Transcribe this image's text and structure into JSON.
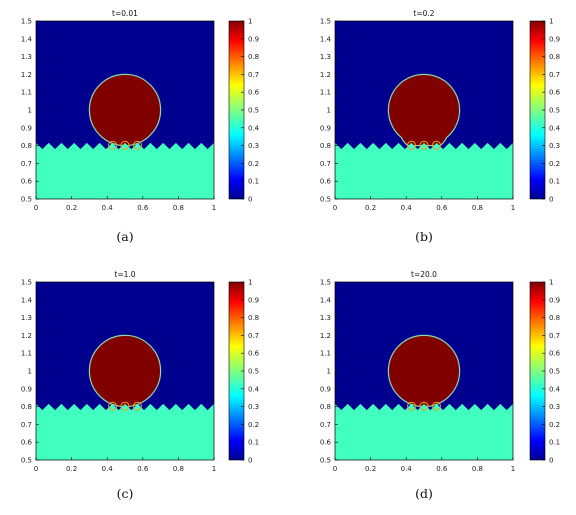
{
  "figure": {
    "panels": [
      {
        "title": "t=0.01",
        "caption": "(a)",
        "drop_state": "initial"
      },
      {
        "title": "t=0.2",
        "caption": "(b)",
        "drop_state": "spreading"
      },
      {
        "title": "t=1.0",
        "caption": "(c)",
        "drop_state": "retracting"
      },
      {
        "title": "t=20.0",
        "caption": "(d)",
        "drop_state": "equilibrium"
      }
    ],
    "x_ticks": [
      "0",
      "0.2",
      "0.4",
      "0.6",
      "0.8",
      "1"
    ],
    "y_ticks": [
      "0.5",
      "0.6",
      "0.7",
      "0.8",
      "0.9",
      "1",
      "1.1",
      "1.2",
      "1.3",
      "1.4",
      "1.5"
    ],
    "colorbar_ticks": [
      "0",
      "0.1",
      "0.2",
      "0.3",
      "0.4",
      "0.5",
      "0.6",
      "0.7",
      "0.8",
      "0.9",
      "1"
    ],
    "colors": {
      "background": "#00008f",
      "drop": "#800000",
      "solid": "#40ffbf",
      "interface": "#8cd6a8"
    }
  },
  "chart_data": {
    "type": "heatmap",
    "xlim": [
      0,
      1
    ],
    "ylim": [
      0.5,
      1.5
    ],
    "colorbar_range": [
      0,
      1
    ],
    "colormap": "jet",
    "drop": {
      "center_x": 0.5,
      "center_y": 1.0,
      "radius": 0.2
    },
    "surface": {
      "peak_y": 0.815,
      "valley_y": 0.78,
      "grooves": 14
    }
  }
}
